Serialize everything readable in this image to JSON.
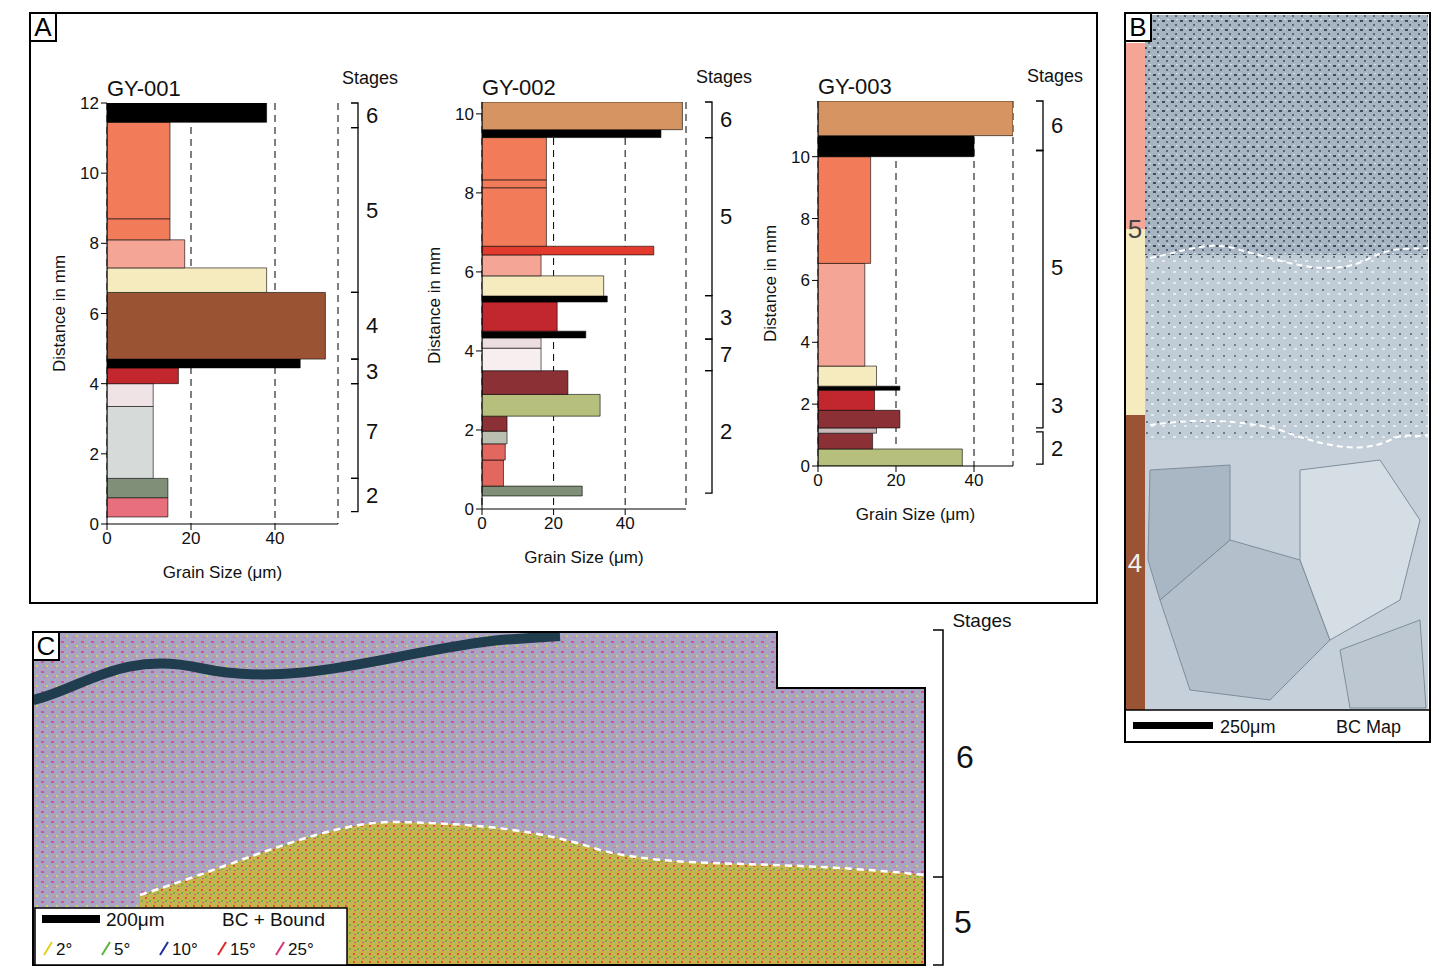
{
  "panel_labels": [
    "A",
    "B",
    "C"
  ],
  "chart_data": [
    {
      "type": "bar",
      "orientation": "horizontal",
      "title": "GY-001",
      "x_label": "Grain Size (μm)",
      "y_label": "Distance in mm",
      "xlim": [
        0,
        55
      ],
      "xticks": [
        0,
        20,
        40
      ],
      "ylim": [
        0,
        12
      ],
      "yticks": [
        0,
        2,
        4,
        6,
        8,
        10,
        12
      ],
      "grid": true,
      "bars": [
        {
          "from": 0.2,
          "to": 0.75,
          "value": 14.5,
          "color": "#e8707c"
        },
        {
          "from": 0.75,
          "to": 1.3,
          "value": 14.5,
          "color": "#7f8f78"
        },
        {
          "from": 1.3,
          "to": 3.35,
          "value": 11,
          "color": "#d6dbd9"
        },
        {
          "from": 3.35,
          "to": 4.0,
          "value": 11,
          "color": "#efe3e6"
        },
        {
          "from": 4.0,
          "to": 4.45,
          "value": 17,
          "color": "#c1272d"
        },
        {
          "from": 4.45,
          "to": 4.7,
          "value": 46,
          "color": "#000000"
        },
        {
          "from": 4.7,
          "to": 6.6,
          "value": 52,
          "color": "#9b5433"
        },
        {
          "from": 6.6,
          "to": 7.3,
          "value": 38,
          "color": "#f6eabf"
        },
        {
          "from": 7.3,
          "to": 8.1,
          "value": 18.5,
          "color": "#f4a596"
        },
        {
          "from": 8.1,
          "to": 8.7,
          "value": 15,
          "color": "#f27b59"
        },
        {
          "from": 8.7,
          "to": 11.45,
          "value": 15,
          "color": "#f27b59"
        },
        {
          "from": 11.45,
          "to": 12,
          "value": 38,
          "color": "#000000"
        }
      ],
      "stages_label": "Stages",
      "stages": [
        {
          "label": "6",
          "from": 11.3,
          "to": 12
        },
        {
          "label": "5",
          "from": 6.6,
          "to": 11.3
        },
        {
          "label": "4",
          "from": 4.7,
          "to": 6.6
        },
        {
          "label": "3",
          "from": 4.0,
          "to": 4.7
        },
        {
          "label": "7",
          "from": 1.3,
          "to": 4.0
        },
        {
          "label": "2",
          "from": 0.35,
          "to": 1.3
        }
      ]
    },
    {
      "type": "bar",
      "orientation": "horizontal",
      "title": "GY-002",
      "x_label": "Grain Size (μm)",
      "y_label": "Distance in mm",
      "xlim": [
        0,
        57
      ],
      "xticks": [
        0,
        20,
        40
      ],
      "ylim": [
        0,
        10.3
      ],
      "yticks": [
        0,
        2,
        4,
        6,
        8,
        10
      ],
      "grid": true,
      "bars": [
        {
          "from": 0.33,
          "to": 0.58,
          "value": 28,
          "color": "#7f8f78"
        },
        {
          "from": 0.58,
          "to": 1.24,
          "value": 6,
          "color": "#e2675f"
        },
        {
          "from": 1.24,
          "to": 1.65,
          "value": 6.5,
          "color": "#e2675f"
        },
        {
          "from": 1.65,
          "to": 1.97,
          "value": 7,
          "color": "#b9c0b0"
        },
        {
          "from": 1.97,
          "to": 2.35,
          "value": 7,
          "color": "#8b3034"
        },
        {
          "from": 2.35,
          "to": 2.9,
          "value": 33,
          "color": "#b6c07c"
        },
        {
          "from": 2.9,
          "to": 3.5,
          "value": 24,
          "color": "#8b3034"
        },
        {
          "from": 3.5,
          "to": 4.07,
          "value": 16.5,
          "color": "#f7eef0"
        },
        {
          "from": 4.07,
          "to": 4.33,
          "value": 16.5,
          "color": "#ecdde0"
        },
        {
          "from": 4.33,
          "to": 4.5,
          "value": 29,
          "color": "#000000"
        },
        {
          "from": 4.5,
          "to": 5.24,
          "value": 21,
          "color": "#c1272d"
        },
        {
          "from": 5.24,
          "to": 5.39,
          "value": 35,
          "color": "#000000"
        },
        {
          "from": 5.39,
          "to": 5.9,
          "value": 34,
          "color": "#f6eabf"
        },
        {
          "from": 5.9,
          "to": 6.43,
          "value": 16.5,
          "color": "#f4a596"
        },
        {
          "from": 6.43,
          "to": 6.65,
          "value": 48,
          "color": "#e23b2e"
        },
        {
          "from": 6.65,
          "to": 8.13,
          "value": 18,
          "color": "#f27b59"
        },
        {
          "from": 8.13,
          "to": 8.33,
          "value": 18,
          "color": "#f27b59"
        },
        {
          "from": 8.33,
          "to": 9.4,
          "value": 18,
          "color": "#f27b59"
        },
        {
          "from": 9.4,
          "to": 9.6,
          "value": 50,
          "color": "#000000"
        },
        {
          "from": 9.6,
          "to": 10.3,
          "value": 56,
          "color": "#d59462"
        }
      ],
      "stages_label": "Stages",
      "stages": [
        {
          "label": "6",
          "from": 9.4,
          "to": 10.3
        },
        {
          "label": "5",
          "from": 5.4,
          "to": 9.4
        },
        {
          "label": "3",
          "from": 4.3,
          "to": 5.4
        },
        {
          "label": "7",
          "from": 3.5,
          "to": 4.3
        },
        {
          "label": "2",
          "from": 0.4,
          "to": 3.5
        }
      ]
    },
    {
      "type": "bar",
      "orientation": "horizontal",
      "title": "GY-003",
      "x_label": "Grain Size (μm)",
      "y_label": "Distance in mm",
      "xlim": [
        0,
        50
      ],
      "xticks": [
        0,
        20,
        40
      ],
      "ylim": [
        0,
        11.8
      ],
      "yticks": [
        0,
        2,
        4,
        6,
        8,
        10
      ],
      "grid": true,
      "bars": [
        {
          "from": 0,
          "to": 0.55,
          "value": 37,
          "color": "#b6c07c"
        },
        {
          "from": 0.55,
          "to": 1.06,
          "value": 14,
          "color": "#8b3034"
        },
        {
          "from": 1.06,
          "to": 1.23,
          "value": 15,
          "color": "#c9b9bb"
        },
        {
          "from": 1.23,
          "to": 1.8,
          "value": 21,
          "color": "#8b3034"
        },
        {
          "from": 1.8,
          "to": 2.45,
          "value": 14.5,
          "color": "#c1272d"
        },
        {
          "from": 2.45,
          "to": 2.58,
          "value": 21,
          "color": "#000000"
        },
        {
          "from": 2.58,
          "to": 3.23,
          "value": 15,
          "color": "#f6eabf"
        },
        {
          "from": 3.23,
          "to": 6.55,
          "value": 12,
          "color": "#f4a596"
        },
        {
          "from": 6.55,
          "to": 10,
          "value": 13.5,
          "color": "#f27b59"
        },
        {
          "from": 10,
          "to": 10.68,
          "value": 40,
          "color": "#000000"
        },
        {
          "from": 10.68,
          "to": 11.8,
          "value": 50,
          "color": "#d59462"
        }
      ],
      "stages_label": "Stages",
      "stages": [
        {
          "label": "6",
          "from": 10.2,
          "to": 11.8
        },
        {
          "label": "5",
          "from": 2.65,
          "to": 10.2
        },
        {
          "label": "3",
          "from": 1.23,
          "to": 2.65
        },
        {
          "label": "2",
          "from": 0.06,
          "to": 1.1
        }
      ]
    }
  ],
  "panel_B": {
    "scale_bar": "250μm",
    "map_label": "BC Map",
    "strip": [
      {
        "label": "5",
        "colors": [
          "#f4a596",
          "#f6eabf"
        ]
      },
      {
        "label": "4",
        "colors": [
          "#9b5433"
        ]
      }
    ]
  },
  "panel_C": {
    "scale_bar": "200μm",
    "map_label": "BC + Bound",
    "boundaries": [
      {
        "label": "2°",
        "color": "#e6cf1e"
      },
      {
        "label": "5°",
        "color": "#5cb338"
      },
      {
        "label": "10°",
        "color": "#1f2fa0"
      },
      {
        "label": "15°",
        "color": "#e0262b"
      },
      {
        "label": "25°",
        "color": "#d9327f"
      }
    ],
    "stages_label": "Stages",
    "stages": [
      "6",
      "5"
    ]
  }
}
